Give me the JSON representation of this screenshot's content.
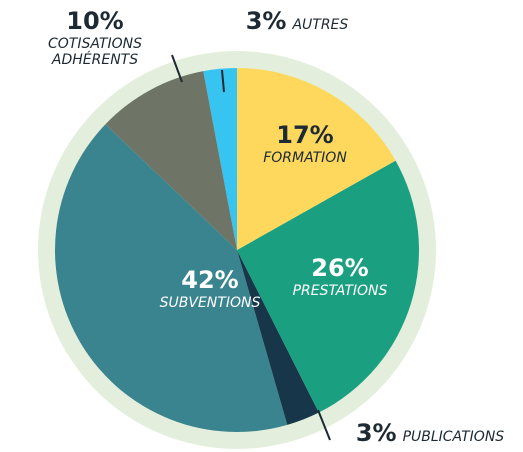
{
  "chart_data": {
    "type": "pie",
    "categories": [
      "FORMATION",
      "PRESTATIONS",
      "PUBLICATIONS",
      "SUBVENTIONS",
      "COTISATIONS ADHÉRENTS",
      "AUTRES"
    ],
    "values": [
      17,
      26,
      3,
      42,
      10,
      3
    ],
    "value_labels": [
      "17%",
      "26%",
      "3%",
      "42%",
      "10%",
      "3%"
    ],
    "colors": [
      "#fdd85d",
      "#1aa080",
      "#17364a",
      "#3a848f",
      "#6f7566",
      "#38c4f0"
    ]
  }
}
